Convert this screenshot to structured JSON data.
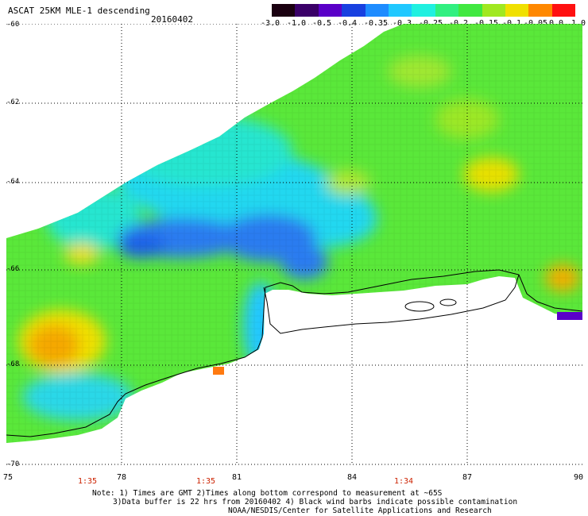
{
  "title": "ASCAT 25KM MLE-1 descending",
  "date": "20160402",
  "colorbar": {
    "tick_labels": [
      "-3.0",
      "-1.0",
      "-0.5",
      "-0.4",
      "-0.35",
      "-0.3",
      "-0.25",
      "-0.2",
      "-0.15",
      "-0.1",
      "-0.05",
      "0.0",
      "1.0"
    ],
    "colors": [
      "#1a0010",
      "#3a0068",
      "#5a00c8",
      "#1840e0",
      "#1e8cff",
      "#20c8ff",
      "#20f0e0",
      "#30f080",
      "#40e840",
      "#a0e820",
      "#f0e000",
      "#ff8800",
      "#ff1010"
    ]
  },
  "map": {
    "lat_labels": [
      "-60",
      "-62",
      "-64",
      "-66",
      "-68",
      "-70"
    ],
    "lon_labels": [
      "75",
      "78",
      "81",
      "84",
      "87",
      "90"
    ],
    "time_labels": [
      "1:35",
      "1:35",
      "1:34"
    ]
  },
  "notes": [
    "Note: 1) Times are GMT 2)Times along bottom correspond to measurement at ~65S",
    "3)Data buffer is 22 hrs from 20160402 4) Black wind barbs indicate possible contamination",
    "NOAA/NESDIS/Center for Satellite Applications and Research"
  ]
}
